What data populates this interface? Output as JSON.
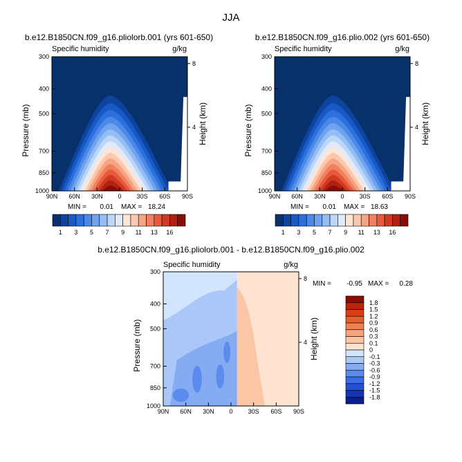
{
  "main_title": "JJA",
  "panels": [
    {
      "id": "a",
      "title": "b.e12.B1850CN.f09_g16.pliolorb.001 (yrs 601-650)",
      "left_label": "Specific humidity",
      "right_label": "g/kg",
      "stats": {
        "min_label": "MIN =",
        "min": "0.01",
        "max_label": "MAX =",
        "max": "18.24"
      }
    },
    {
      "id": "b",
      "title": "b.e12.B1850CN.f09_g16.plio.002 (yrs 601-650)",
      "left_label": "Specific humidity",
      "right_label": "g/kg",
      "stats": {
        "min_label": "MIN =",
        "min": "0.01",
        "max_label": "MAX =",
        "max": "18.63"
      }
    },
    {
      "id": "c",
      "title": "b.e12.B1850CN.f09_g16.pliolorb.001 - b.e12.B1850CN.f09_g16.plio.002",
      "left_label": "Specific humidity",
      "right_label": "g/kg",
      "stats": {
        "min_label": "MIN =",
        "min": "-0.95",
        "max_label": "MAX =",
        "max": "0.28"
      }
    }
  ],
  "chart_data": [
    {
      "type": "heatmap",
      "subtype": "latitude-pressure contour",
      "panel": "a",
      "variable": "Specific humidity",
      "units": "g/kg",
      "xlabel": "",
      "x_ticks": [
        "90N",
        "60N",
        "30N",
        "0",
        "30S",
        "60S",
        "90S"
      ],
      "ylabel": "Pressure (mb)",
      "y_ticks": [
        300,
        400,
        500,
        700,
        850,
        1000
      ],
      "y_range": [
        300,
        1000
      ],
      "right_axis_label": "Height (km)",
      "right_ticks": [
        4,
        8
      ],
      "min": 0.01,
      "max": 18.24,
      "levels": [
        1,
        2,
        3,
        4,
        5,
        6,
        7,
        8,
        9,
        10,
        11,
        12,
        13,
        14,
        15,
        16
      ],
      "colorbar_labels": [
        "1",
        "3",
        "5",
        "7",
        "9",
        "11",
        "13",
        "16"
      ],
      "surface_humidity_peak_lat": "10N"
    },
    {
      "type": "heatmap",
      "subtype": "latitude-pressure contour",
      "panel": "b",
      "variable": "Specific humidity",
      "units": "g/kg",
      "xlabel": "",
      "x_ticks": [
        "90N",
        "60N",
        "30N",
        "0",
        "30S",
        "60S",
        "90S"
      ],
      "ylabel": "Pressure (mb)",
      "y_ticks": [
        300,
        400,
        500,
        700,
        850,
        1000
      ],
      "y_range": [
        300,
        1000
      ],
      "right_axis_label": "Height (km)",
      "right_ticks": [
        4,
        8
      ],
      "min": 0.01,
      "max": 18.63,
      "levels": [
        1,
        2,
        3,
        4,
        5,
        6,
        7,
        8,
        9,
        10,
        11,
        12,
        13,
        14,
        15,
        16
      ],
      "colorbar_labels": [
        "1",
        "3",
        "5",
        "7",
        "9",
        "11",
        "13",
        "16"
      ],
      "surface_humidity_peak_lat": "10N"
    },
    {
      "type": "heatmap",
      "subtype": "latitude-pressure difference contour",
      "panel": "c",
      "variable": "Specific humidity",
      "units": "g/kg",
      "xlabel": "",
      "x_ticks": [
        "90N",
        "60N",
        "30N",
        "0",
        "30S",
        "60S",
        "90S"
      ],
      "ylabel": "Pressure (mb)",
      "y_ticks": [
        300,
        400,
        500,
        700,
        850,
        1000
      ],
      "y_range": [
        300,
        1000
      ],
      "right_axis_label": "Height (km)",
      "right_ticks": [
        4,
        8
      ],
      "min": -0.95,
      "max": 0.28,
      "levels": [
        -1.8,
        -1.5,
        -1.2,
        -0.9,
        -0.6,
        -0.3,
        -0.1,
        0,
        0.1,
        0.3,
        0.6,
        0.9,
        1.2,
        1.5,
        1.8
      ],
      "colorbar_labels": [
        "1.8",
        "1.5",
        "1.2",
        "0.9",
        "0.6",
        "0.3",
        "0.1",
        "0",
        "-0.1",
        "-0.3",
        "-0.6",
        "-0.9",
        "-1.2",
        "-1.5",
        "-1.8"
      ],
      "sign_change_lat": "8S"
    }
  ],
  "palettes": {
    "full": [
      "#08306b",
      "#0c44a0",
      "#1859c6",
      "#2b70dd",
      "#4a89e8",
      "#6fa3ef",
      "#94bdf4",
      "#bcd6f8",
      "#dfeafb",
      "#fde6d8",
      "#fbc8ae",
      "#f7a483",
      "#f1805e",
      "#e65a3b",
      "#d03a20",
      "#b02112",
      "#8a0c06"
    ],
    "diff": [
      "#0a1f8f",
      "#1436b4",
      "#2150d6",
      "#3a6de6",
      "#5b8ced",
      "#85acf3",
      "#aac7f7",
      "#d3e5fc",
      "#fde3d0",
      "#fbc6a6",
      "#f7a47c",
      "#f08050",
      "#e85d2c",
      "#d93f16",
      "#bf220a",
      "#8e0a02"
    ]
  }
}
